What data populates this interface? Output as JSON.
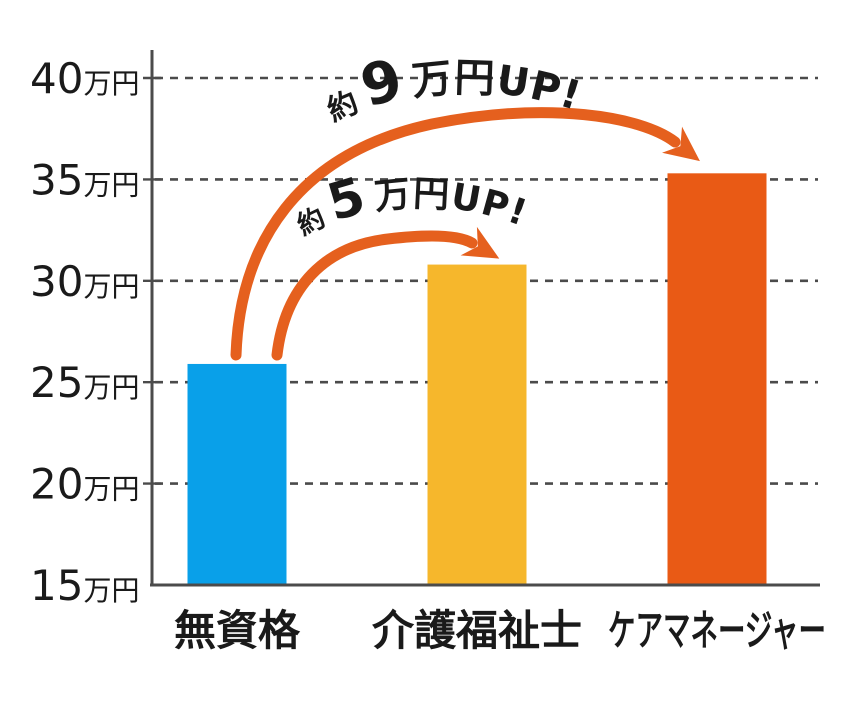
{
  "chart_data": {
    "type": "bar",
    "title": "",
    "unit": "万円",
    "categories": [
      "無資格",
      "介護福祉士",
      "ケアマネージャー"
    ],
    "values": [
      25.9,
      30.8,
      35.3
    ],
    "bar_colors": [
      "#09a0e9",
      "#f6b72c",
      "#e95a15"
    ],
    "ylim": [
      15,
      40
    ],
    "yticks": [
      {
        "value": 40,
        "label": "40万円"
      },
      {
        "value": 35,
        "label": "35万円"
      },
      {
        "value": 30,
        "label": "30万円"
      },
      {
        "value": 25,
        "label": "25万円"
      },
      {
        "value": 20,
        "label": "20万円"
      },
      {
        "value": 15,
        "label": "15万円"
      }
    ],
    "grid": "dashed-horizontal",
    "legend": "none",
    "axis_color": "#4b4b4b",
    "annotations": [
      {
        "prefix": "約",
        "number": "9",
        "suffix": "万円UP!",
        "from": "無資格",
        "to": "ケアマネージャー",
        "color": "#e5601e"
      },
      {
        "prefix": "約",
        "number": "5",
        "suffix": "万円UP!",
        "from": "無資格",
        "to": "介護福祉士",
        "color": "#e5601e"
      }
    ]
  }
}
